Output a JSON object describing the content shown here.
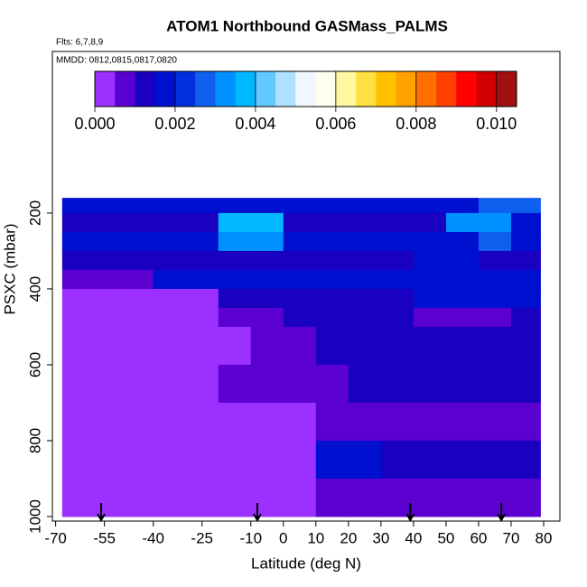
{
  "chart_data": {
    "type": "heatmap",
    "title": "ATOM1 Northbound GASMass_PALMS",
    "annotations": [
      "Flts: 6,7,8,9",
      "MMDD: 0812,0815,0817,0820"
    ],
    "xlabel": "Latitude (deg N)",
    "ylabel": "PSXC (mbar)",
    "xlim": [
      -71,
      85
    ],
    "ylim": [
      1012,
      -226
    ],
    "xticks": [
      -70,
      -55,
      -40,
      -25,
      -10,
      0,
      10,
      20,
      30,
      40,
      50,
      60,
      70,
      80
    ],
    "yticks": [
      200,
      400,
      600,
      800,
      1000
    ],
    "x": [
      -68,
      -60,
      -50,
      -40,
      -30,
      -20,
      -10,
      0,
      10,
      20,
      30,
      40,
      50,
      60,
      70,
      79
    ],
    "y": [
      160,
      200,
      250,
      300,
      350,
      400,
      450,
      500,
      600,
      700,
      800,
      900,
      1000
    ],
    "z": [
      [
        0.0018,
        0.0018,
        0.0018,
        0.0018,
        0.0018,
        0.0018,
        0.0018,
        0.0018,
        0.0018,
        0.0018,
        0.0018,
        0.0018,
        0.0018,
        0.0025,
        0.0025
      ],
      [
        0.0012,
        0.0012,
        0.0012,
        0.0012,
        0.0012,
        0.0035,
        0.0035,
        0.0012,
        0.0012,
        0.0012,
        0.0012,
        0.0012,
        0.003,
        0.003,
        0.0015
      ],
      [
        0.0015,
        0.0015,
        0.0015,
        0.0015,
        0.0015,
        0.0032,
        0.0032,
        0.0015,
        0.0015,
        0.0015,
        0.0015,
        0.0015,
        0.0015,
        0.0025,
        0.0015
      ],
      [
        0.0012,
        0.0012,
        0.0012,
        0.0012,
        0.0012,
        0.0012,
        0.0012,
        0.0012,
        0.0012,
        0.0012,
        0.0012,
        0.0018,
        0.0018,
        0.0012,
        0.0012
      ],
      [
        0.0007,
        0.0007,
        0.0007,
        0.0015,
        0.0015,
        0.0015,
        0.0015,
        0.0015,
        0.0015,
        0.0015,
        0.0015,
        0.0015,
        0.0015,
        0.0015,
        0.0015
      ],
      [
        0.0004,
        0.0004,
        0.0004,
        0.0004,
        0.0004,
        0.001,
        0.001,
        0.001,
        0.001,
        0.001,
        0.001,
        0.0018,
        0.0018,
        0.0018,
        0.0018
      ],
      [
        0.0004,
        0.0004,
        0.0004,
        0.0004,
        0.0004,
        0.0006,
        0.0006,
        0.0012,
        0.0012,
        0.0012,
        0.0012,
        0.0008,
        0.0008,
        0.0008,
        0.0012
      ],
      [
        0.0003,
        0.0003,
        0.0003,
        0.0003,
        0.0003,
        0.0003,
        0.0008,
        0.0008,
        0.0013,
        0.0013,
        0.0013,
        0.0013,
        0.0013,
        0.0013,
        0.0013
      ],
      [
        0.0003,
        0.0003,
        0.0003,
        0.0003,
        0.0003,
        0.0006,
        0.0006,
        0.0006,
        0.0006,
        0.0012,
        0.0012,
        0.0012,
        0.0012,
        0.0012,
        0.0012
      ],
      [
        0.0003,
        0.0003,
        0.0003,
        0.0003,
        0.0003,
        0.0003,
        0.0003,
        0.0003,
        0.0009,
        0.0009,
        0.0009,
        0.0009,
        0.0009,
        0.0009,
        0.0009
      ],
      [
        0.0004,
        0.0004,
        0.0004,
        0.0004,
        0.0004,
        0.0004,
        0.0004,
        0.0004,
        0.0018,
        0.0018,
        0.0012,
        0.0012,
        0.0012,
        0.0012,
        0.0012
      ],
      [
        0.0003,
        0.0003,
        0.0003,
        0.0003,
        0.0003,
        0.0003,
        0.0003,
        0.0003,
        0.0008,
        0.0008,
        0.0008,
        0.0008,
        0.0008,
        0.0008,
        0.0008
      ]
    ],
    "arrows": [
      -56,
      -8,
      39,
      67
    ],
    "colorbar": {
      "clim": [
        0,
        0.0105
      ],
      "ticks": [
        {
          "value": 0,
          "label": "0.000"
        },
        0.002,
        0.004,
        0.006,
        0.008,
        {
          "value": 0.01,
          "label": "0.010"
        }
      ],
      "colors": [
        "#9b30ff",
        "#5a00d0",
        "#1a00c0",
        "#0010d0",
        "#0030e0",
        "#1060f0",
        "#0090ff",
        "#00b8ff",
        "#60c8ff",
        "#b0e0ff",
        "#f0f8ff",
        "#fffff0",
        "#fff8a0",
        "#ffe040",
        "#ffc000",
        "#ffa000",
        "#ff7000",
        "#ff4000",
        "#ff0000",
        "#d00000",
        "#a01010"
      ]
    }
  }
}
